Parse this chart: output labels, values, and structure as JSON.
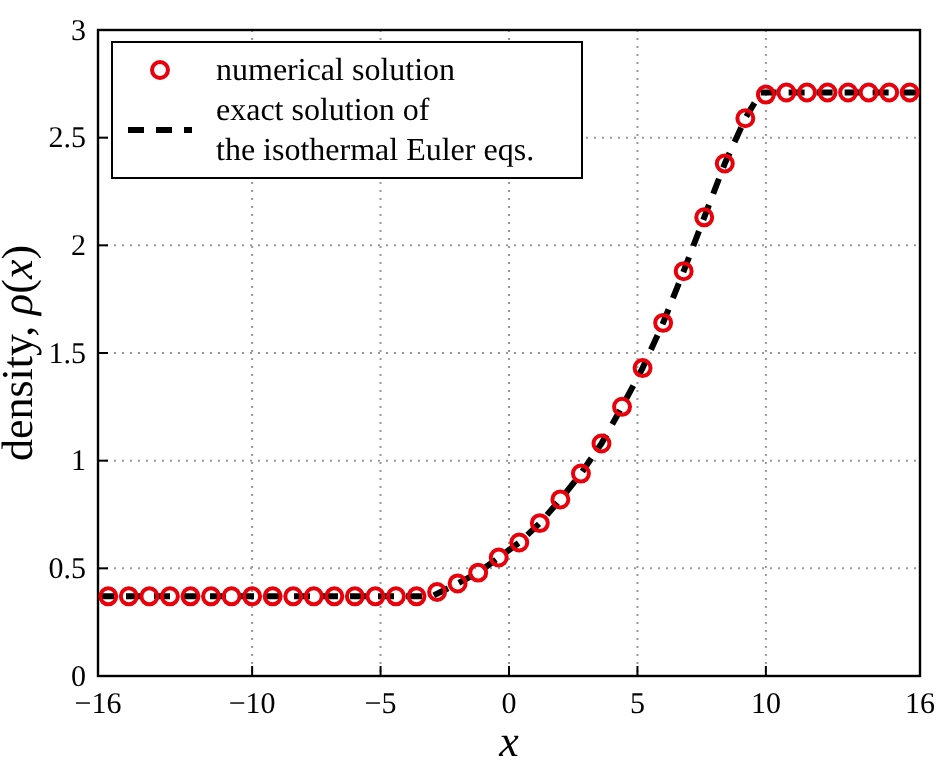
{
  "chart_data": {
    "type": "line",
    "xlabel": "x",
    "ylabel": "density, ρ(x)",
    "xlim": [
      -16,
      16
    ],
    "xticks": [
      -16,
      -10,
      -5,
      0,
      5,
      10,
      16
    ],
    "ylim": [
      0,
      3
    ],
    "yticks": [
      0,
      0.5,
      1,
      1.5,
      2,
      2.5,
      3
    ],
    "grid": true,
    "legend": "top left",
    "series": [
      {
        "name": "numerical solution",
        "type": "scatter",
        "color": "#e8000b",
        "marker": "circle",
        "x": [
          -15.6,
          -14.8,
          -14,
          -13.2,
          -12.4,
          -11.6,
          -10.8,
          -10,
          -9.2,
          -8.4,
          -7.6,
          -6.8,
          -6,
          -5.2,
          -4.4,
          -3.6,
          -2.8,
          -2,
          -1.2,
          -0.4,
          0.4,
          1.2,
          2,
          2.8,
          3.6,
          4.4,
          5.2,
          6,
          6.8,
          7.6,
          8.4,
          9.2,
          10,
          10.8,
          11.6,
          12.4,
          13.2,
          14,
          14.8,
          15.6
        ],
        "values": [
          0.37,
          0.37,
          0.37,
          0.37,
          0.37,
          0.37,
          0.37,
          0.37,
          0.37,
          0.37,
          0.37,
          0.37,
          0.37,
          0.37,
          0.37,
          0.37,
          0.39,
          0.43,
          0.48,
          0.55,
          0.62,
          0.71,
          0.82,
          0.94,
          1.08,
          1.25,
          1.43,
          1.64,
          1.88,
          2.13,
          2.38,
          2.59,
          2.7,
          2.71,
          2.71,
          2.71,
          2.71,
          2.71,
          2.71,
          2.71
        ]
      },
      {
        "name": "exact solution of\nthe isothermal Euler eqs.",
        "color": "#000000",
        "line_style": "dashed",
        "marker": "none",
        "x": [
          -16,
          -3,
          -2,
          -1.2,
          -0.4,
          0.4,
          1.2,
          2,
          2.8,
          3.6,
          4.4,
          5.2,
          6,
          6.8,
          7.6,
          8.4,
          9.2,
          9.8,
          16
        ],
        "values": [
          0.37,
          0.37,
          0.43,
          0.48,
          0.55,
          0.62,
          0.71,
          0.82,
          0.94,
          1.08,
          1.25,
          1.43,
          1.64,
          1.88,
          2.13,
          2.38,
          2.59,
          2.71,
          2.71
        ]
      }
    ]
  }
}
